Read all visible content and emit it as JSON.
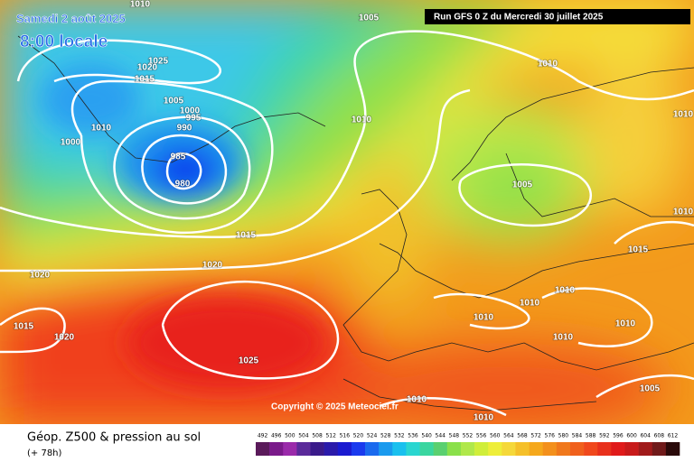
{
  "header": {
    "date": "Samedi 2 août 2025",
    "time": "8:00 locale",
    "run": "Run GFS 0 Z du Mercredi 30 juillet 2025"
  },
  "copyright": "Copyright © 2025 Meteociel.fr",
  "footer": {
    "title": "Géop. Z500 & pression au sol",
    "subtitle": "(+ 78h)"
  },
  "isobar_labels": [
    "1010",
    "1005",
    "1025",
    "1020",
    "1015",
    "1005",
    "1000",
    "995",
    "990",
    "1010",
    "1000",
    "985",
    "980",
    "1010",
    "1010",
    "1010",
    "1005",
    "1010",
    "1015",
    "1020",
    "1020",
    "1015",
    "1010",
    "1010",
    "1010",
    "1010",
    "1010",
    "1015",
    "1020",
    "1025",
    "1005",
    "1010",
    "1010"
  ],
  "legend": {
    "labels": [
      "492",
      "496",
      "500",
      "504",
      "508",
      "512",
      "516",
      "520",
      "524",
      "528",
      "532",
      "536",
      "540",
      "544",
      "548",
      "552",
      "556",
      "560",
      "564",
      "568",
      "572",
      "576",
      "580",
      "584",
      "588",
      "592",
      "596",
      "600",
      "604",
      "608",
      "612"
    ],
    "colors": [
      "#5a1a5a",
      "#7a1a8a",
      "#9a2aaa",
      "#5a2a9a",
      "#3a1a8a",
      "#2a1aaa",
      "#1a1ad0",
      "#1a3aee",
      "#1a6aee",
      "#1a9aee",
      "#1ac0ee",
      "#2ad6d0",
      "#3ad6a0",
      "#5ad070",
      "#8ae04a",
      "#b0e84a",
      "#d0ee3a",
      "#eeee3a",
      "#f5d83a",
      "#f5c02a",
      "#f5a81c",
      "#f3901c",
      "#f0781c",
      "#f0601c",
      "#f0481c",
      "#e8301c",
      "#e01a1a",
      "#c81a1a",
      "#a01a1a",
      "#701a1a",
      "#2a0a0a"
    ]
  }
}
